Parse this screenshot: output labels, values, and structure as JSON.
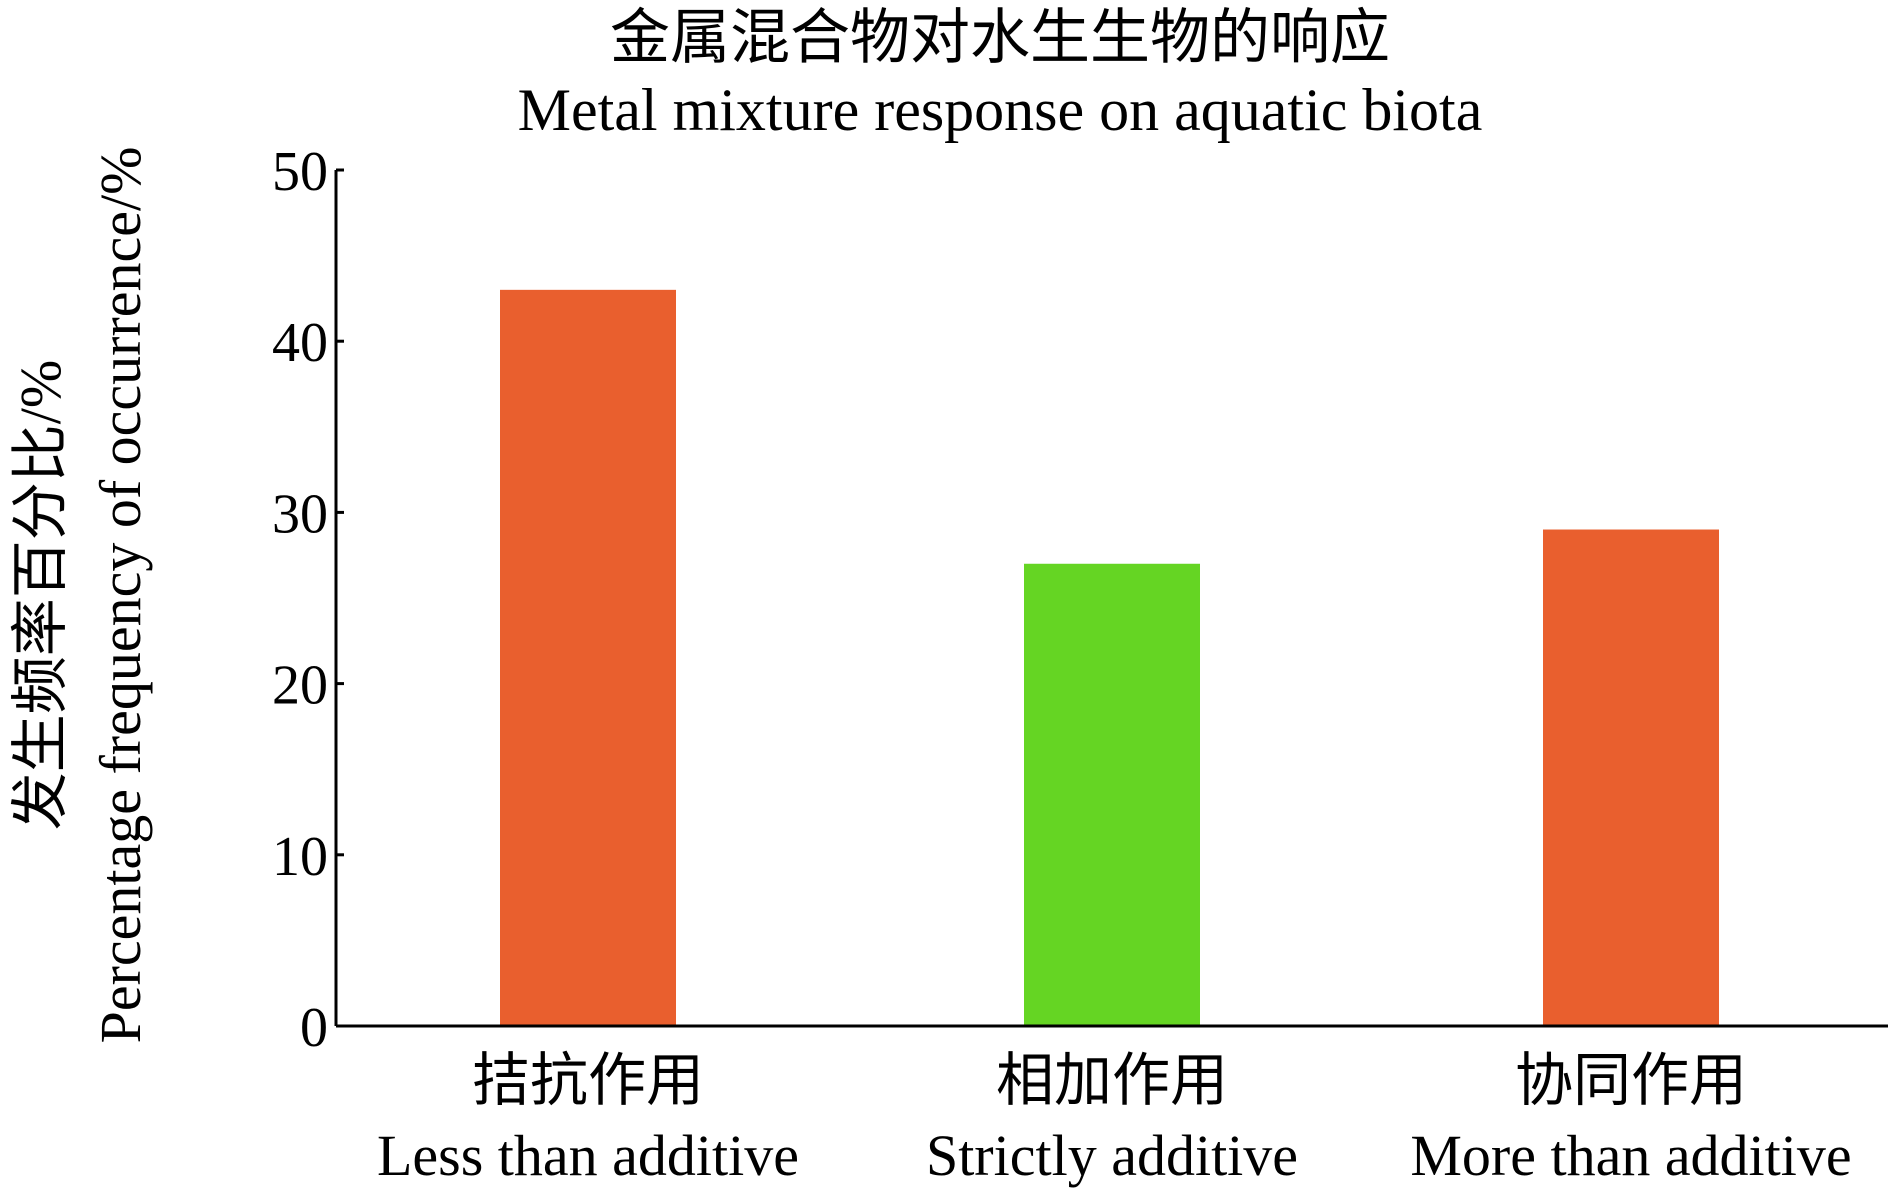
{
  "chart_data": {
    "type": "bar",
    "title": "金属混合物对水生生物的响应",
    "subtitle": "Metal mixture response on aquatic biota",
    "ylabel": "Percentage frequency of occurrence/%",
    "ylabel_zh": "发生频率百分比/%",
    "xlabel": "",
    "ylim": [
      0,
      50
    ],
    "yticks": [
      "0",
      "10",
      "20",
      "30",
      "40",
      "50"
    ],
    "grid": false,
    "categories": [
      {
        "zh": "拮抗作用",
        "en": "Less than additive"
      },
      {
        "zh": "相加作用",
        "en": "Strictly additive"
      },
      {
        "zh": "协同作用",
        "en": "More than additive"
      }
    ],
    "values": [
      43,
      27,
      29
    ],
    "colors": [
      "#e95f2e",
      "#65d523",
      "#e95f2e"
    ]
  }
}
